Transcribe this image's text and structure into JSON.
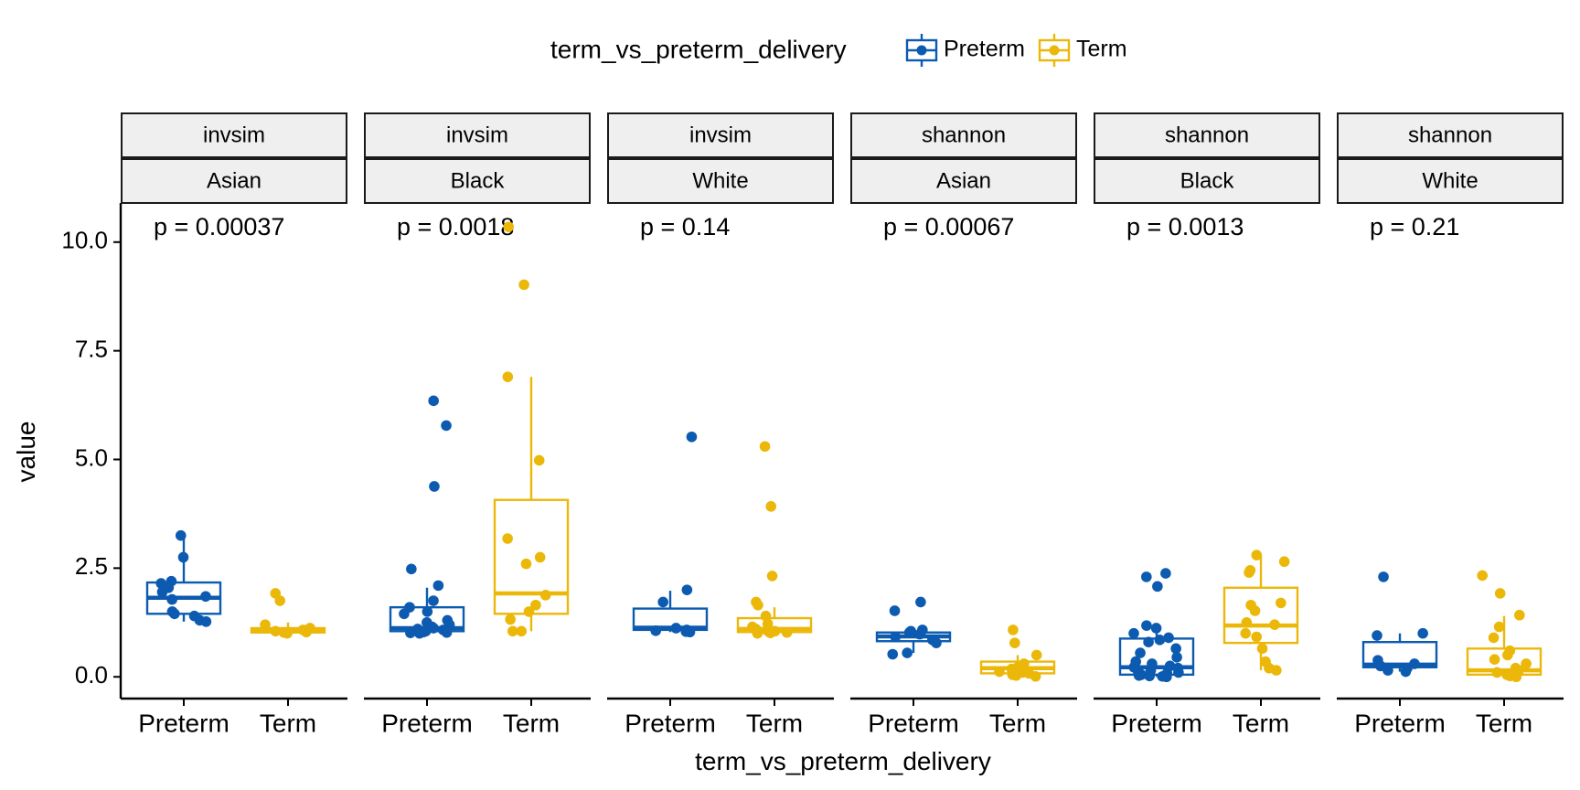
{
  "chart_data": {
    "type": "box",
    "xlabel": "term_vs_preterm_delivery",
    "ylabel": "value",
    "ylim": [
      -0.5,
      10.9
    ],
    "yticks": [
      0,
      2.5,
      5,
      7.5,
      10
    ],
    "ytick_labels": [
      "0.0",
      "2.5",
      "5.0",
      "7.5",
      "10.0"
    ],
    "categories": [
      "Preterm",
      "Term"
    ],
    "legend": {
      "title": "term_vs_preterm_delivery",
      "position": "top",
      "entries": [
        {
          "name": "Preterm",
          "color": "#0C5BB0"
        },
        {
          "name": "Term",
          "color": "#EBB80A"
        }
      ]
    },
    "panels": [
      {
        "strip1": "invsim",
        "strip2": "Asian",
        "pvalue": "p = 0.00037",
        "groups": [
          {
            "name": "Preterm",
            "box": {
              "q1": 1.45,
              "median": 1.82,
              "q3": 2.17,
              "wlo": 1.27,
              "whi": 3.22
            },
            "points": [
              3.25,
              2.75,
              2.2,
              2.15,
              2.05,
              1.95,
              1.85,
              1.78,
              1.5,
              1.45,
              1.4,
              1.3,
              1.27
            ]
          },
          {
            "name": "Term",
            "box": {
              "q1": 1.02,
              "median": 1.07,
              "q3": 1.12,
              "wlo": 1.0,
              "whi": 1.25
            },
            "points": [
              1.92,
              1.75,
              1.2,
              1.12,
              1.08,
              1.05,
              1.03,
              1.02,
              1.0
            ]
          }
        ]
      },
      {
        "strip1": "invsim",
        "strip2": "Black",
        "pvalue": "p = 0.0018",
        "groups": [
          {
            "name": "Preterm",
            "box": {
              "q1": 1.05,
              "median": 1.12,
              "q3": 1.6,
              "wlo": 1.0,
              "whi": 2.05
            },
            "points": [
              6.35,
              5.78,
              4.38,
              2.48,
              2.1,
              1.75,
              1.6,
              1.5,
              1.45,
              1.3,
              1.25,
              1.2,
              1.15,
              1.12,
              1.1,
              1.08,
              1.05,
              1.03,
              1.02,
              1.01,
              1.0
            ]
          },
          {
            "name": "Term",
            "box": {
              "q1": 1.45,
              "median": 1.92,
              "q3": 4.07,
              "wlo": 1.05,
              "whi": 6.9
            },
            "points": [
              10.35,
              9.02,
              6.9,
              4.98,
              3.18,
              2.75,
              2.6,
              1.88,
              1.65,
              1.5,
              1.32,
              1.05,
              1.05
            ]
          }
        ]
      },
      {
        "strip1": "invsim",
        "strip2": "White",
        "pvalue": "p = 0.14",
        "groups": [
          {
            "name": "Preterm",
            "box": {
              "q1": 1.08,
              "median": 1.13,
              "q3": 1.57,
              "wlo": 1.03,
              "whi": 1.98
            },
            "points": [
              5.52,
              2.0,
              1.72,
              1.12,
              1.08,
              1.06,
              1.04,
              1.03
            ]
          },
          {
            "name": "Term",
            "box": {
              "q1": 1.03,
              "median": 1.1,
              "q3": 1.35,
              "wlo": 1.0,
              "whi": 1.6
            },
            "points": [
              5.3,
              3.92,
              2.32,
              1.72,
              1.65,
              1.4,
              1.22,
              1.15,
              1.1,
              1.07,
              1.05,
              1.03,
              1.02,
              1.01,
              1.0
            ]
          }
        ]
      },
      {
        "strip1": "shannon",
        "strip2": "Asian",
        "pvalue": "p = 0.00067",
        "groups": [
          {
            "name": "Preterm",
            "box": {
              "q1": 0.82,
              "median": 0.93,
              "q3": 1.02,
              "wlo": 0.55,
              "whi": 1.1
            },
            "points": [
              1.72,
              1.52,
              1.08,
              1.05,
              1.02,
              0.98,
              0.92,
              0.85,
              0.78,
              0.55,
              0.52
            ]
          },
          {
            "name": "Term",
            "box": {
              "q1": 0.08,
              "median": 0.2,
              "q3": 0.35,
              "wlo": 0.0,
              "whi": 0.5
            },
            "points": [
              1.08,
              0.78,
              0.5,
              0.3,
              0.22,
              0.18,
              0.12,
              0.1,
              0.08,
              0.05,
              0.03,
              0.01
            ]
          }
        ]
      },
      {
        "strip1": "shannon",
        "strip2": "Black",
        "pvalue": "p = 0.0013",
        "groups": [
          {
            "name": "Preterm",
            "box": {
              "q1": 0.05,
              "median": 0.22,
              "q3": 0.88,
              "wlo": 0.0,
              "whi": 1.2
            },
            "points": [
              2.38,
              2.3,
              2.08,
              1.18,
              1.12,
              1.0,
              0.9,
              0.85,
              0.8,
              0.65,
              0.55,
              0.45,
              0.35,
              0.3,
              0.25,
              0.22,
              0.2,
              0.15,
              0.12,
              0.1,
              0.08,
              0.05,
              0.03,
              0.02,
              0.01,
              0.0
            ]
          },
          {
            "name": "Term",
            "box": {
              "q1": 0.78,
              "median": 1.18,
              "q3": 2.05,
              "wlo": 0.15,
              "whi": 2.8
            },
            "points": [
              2.8,
              2.65,
              2.45,
              2.4,
              1.7,
              1.65,
              1.52,
              1.25,
              1.2,
              1.0,
              0.92,
              0.65,
              0.35,
              0.2,
              0.15
            ]
          }
        ]
      },
      {
        "strip1": "shannon",
        "strip2": "White",
        "pvalue": "p = 0.21",
        "groups": [
          {
            "name": "Preterm",
            "box": {
              "q1": 0.22,
              "median": 0.28,
              "q3": 0.8,
              "wlo": 0.12,
              "whi": 1.0
            },
            "points": [
              2.3,
              1.0,
              0.95,
              0.38,
              0.3,
              0.25,
              0.2,
              0.15,
              0.12
            ]
          },
          {
            "name": "Term",
            "box": {
              "q1": 0.05,
              "median": 0.15,
              "q3": 0.65,
              "wlo": 0.0,
              "whi": 1.4
            },
            "points": [
              2.33,
              1.92,
              1.42,
              1.15,
              0.9,
              0.6,
              0.5,
              0.4,
              0.3,
              0.2,
              0.15,
              0.1,
              0.05,
              0.02,
              0.0
            ]
          }
        ]
      }
    ]
  }
}
